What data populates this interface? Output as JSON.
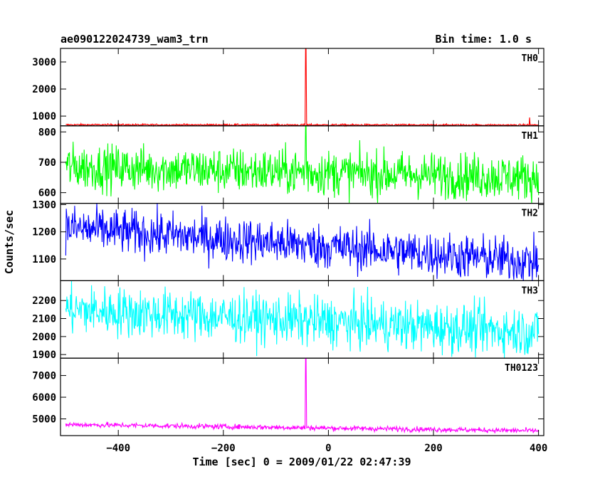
{
  "header": {
    "left": "ae090122024739_wam3_trn",
    "right": "Bin time: 1.0 s"
  },
  "chart_data": {
    "type": "line",
    "title": "ae090122024739_wam3_trn",
    "bin_time": "Bin time: 1.0 s",
    "xlabel": "Time [sec] 0 = 2009/01/22 02:47:39",
    "ylabel": "Counts/sec",
    "xlim": [
      -510,
      410
    ],
    "x_ticks": [
      -400,
      -200,
      0,
      200,
      400
    ],
    "x_tick_labels": [
      "−400",
      "−200",
      "0",
      "200",
      "400"
    ],
    "n_points": 900,
    "x_start": -500,
    "x_end": 400,
    "panels": [
      {
        "name": "TH0",
        "color": "#ff0000",
        "ylim": [
          640,
          3500
        ],
        "yticks": [
          1000,
          2000,
          3000
        ],
        "baseline": [
          [
            -500,
            680
          ],
          [
            400,
            670
          ]
        ],
        "noise": 18,
        "spikes": [
          {
            "x": -43,
            "y": 3500
          },
          {
            "x": 383,
            "y": 950
          }
        ]
      },
      {
        "name": "TH1",
        "color": "#00ff00",
        "ylim": [
          565,
          820
        ],
        "yticks": [
          600,
          700,
          800
        ],
        "baseline": [
          [
            -500,
            685
          ],
          [
            400,
            650
          ]
        ],
        "noise": 38,
        "spikes": [
          {
            "x": -43,
            "y": 820
          }
        ]
      },
      {
        "name": "TH2",
        "color": "#0000ff",
        "ylim": [
          1020,
          1305
        ],
        "yticks": [
          1100,
          1200,
          1300
        ],
        "baseline": [
          [
            -500,
            1215
          ],
          [
            400,
            1090
          ]
        ],
        "noise": 42,
        "spikes": []
      },
      {
        "name": "TH3",
        "color": "#00ffff",
        "ylim": [
          1880,
          2310
        ],
        "yticks": [
          1900,
          2000,
          2100,
          2200
        ],
        "baseline": [
          [
            -500,
            2150
          ],
          [
            400,
            2025
          ]
        ],
        "noise": 70,
        "spikes": []
      },
      {
        "name": "TH0123",
        "color": "#ff00ff",
        "ylim": [
          4230,
          7800
        ],
        "yticks": [
          5000,
          6000,
          7000
        ],
        "baseline": [
          [
            -500,
            4740
          ],
          [
            400,
            4450
          ]
        ],
        "noise": 60,
        "spikes": [
          {
            "x": -43,
            "y": 7800
          }
        ]
      }
    ]
  }
}
